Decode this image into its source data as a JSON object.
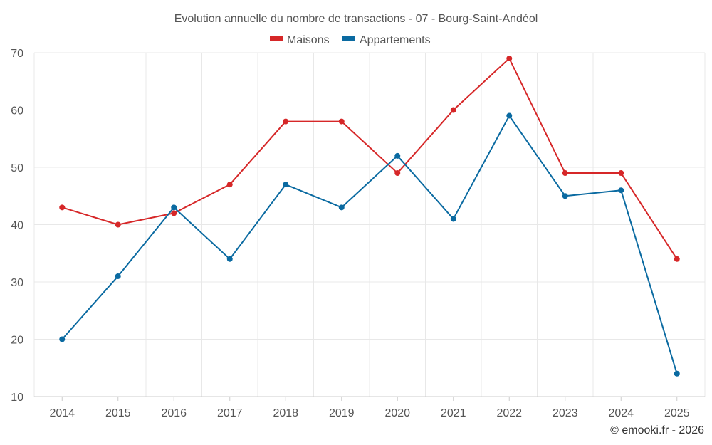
{
  "chart_data": {
    "type": "line",
    "title": "Evolution annuelle du nombre de transactions - 07 - Bourg-Saint-Andéol",
    "categories": [
      "2014",
      "2015",
      "2016",
      "2017",
      "2018",
      "2019",
      "2020",
      "2021",
      "2022",
      "2023",
      "2024",
      "2025"
    ],
    "series": [
      {
        "name": "Maisons",
        "color": "#d62728",
        "values": [
          43,
          40,
          42,
          47,
          58,
          58,
          49,
          60,
          69,
          49,
          49,
          34
        ]
      },
      {
        "name": "Appartements",
        "color": "#0a6aa1",
        "values": [
          20,
          31,
          43,
          34,
          47,
          43,
          52,
          41,
          59,
          45,
          46,
          14
        ]
      }
    ],
    "ylim": [
      10,
      70
    ],
    "yticks": [
      10,
      20,
      30,
      40,
      50,
      60,
      70
    ],
    "xlabel": "",
    "ylabel": "",
    "grid": true,
    "legend_position": "top-center"
  },
  "credit": "© emooki.fr - 2026"
}
